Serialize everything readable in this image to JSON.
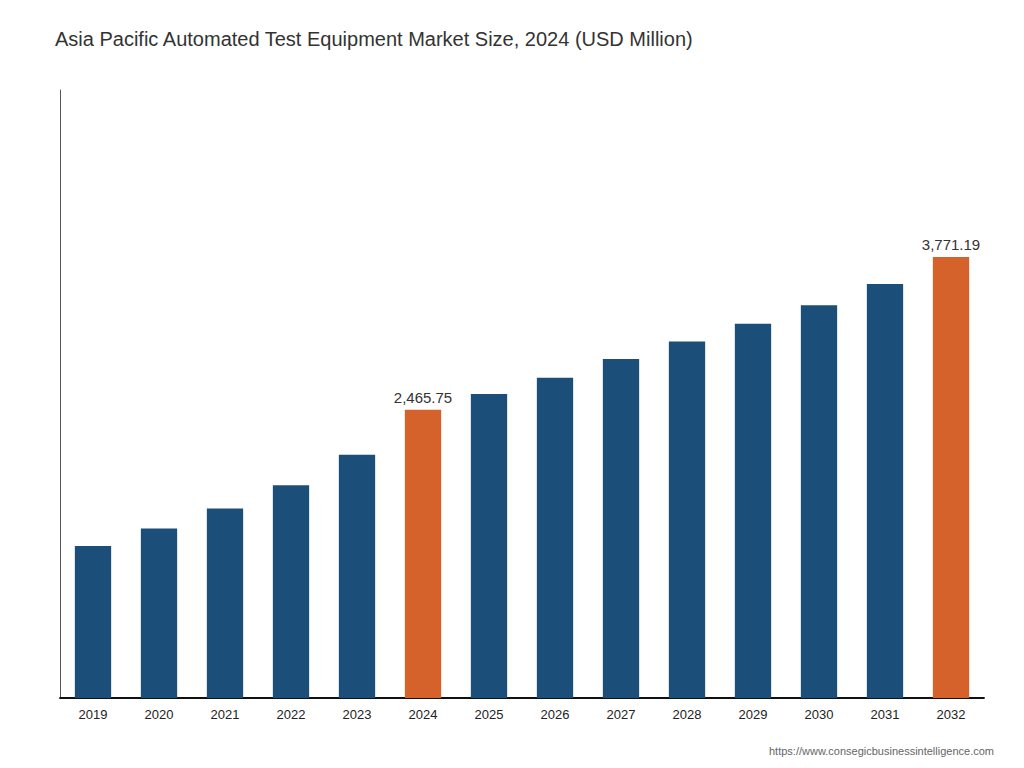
{
  "chart_data": {
    "type": "bar",
    "title": "Asia Pacific Automated Test Equipment Market Size, 2024 (USD Million)",
    "categories": [
      "2019",
      "2020",
      "2021",
      "2022",
      "2023",
      "2024",
      "2025",
      "2026",
      "2027",
      "2028",
      "2029",
      "2030",
      "2031",
      "2032"
    ],
    "values": [
      1300,
      1450,
      1620,
      1820,
      2080,
      2465.75,
      2600,
      2740,
      2900,
      3050,
      3200,
      3360,
      3540,
      3771.19
    ],
    "colors": [
      "#1B4F7A",
      "#1B4F7A",
      "#1B4F7A",
      "#1B4F7A",
      "#1B4F7A",
      "#D4622A",
      "#1B4F7A",
      "#1B4F7A",
      "#1B4F7A",
      "#1B4F7A",
      "#1B4F7A",
      "#1B4F7A",
      "#1B4F7A",
      "#D4622A"
    ],
    "ylim": [
      0,
      5200
    ],
    "grid": false,
    "tick_labels": "x",
    "annotations": [
      {
        "x": "2024",
        "y": 2465.75,
        "text": "2,465.75"
      },
      {
        "x": "2032",
        "y": 3771.19,
        "text": "3,771.19"
      },
      {
        "text": "https://www.consegicbusinessintelligence.com"
      }
    ]
  }
}
